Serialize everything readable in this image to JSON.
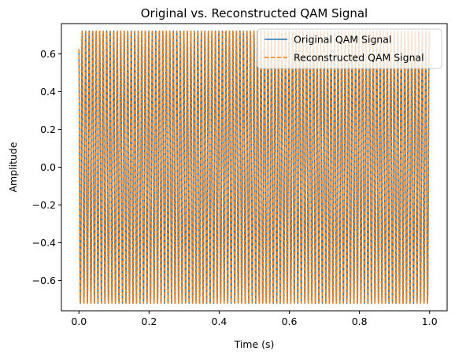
{
  "chart_data": {
    "type": "line",
    "title": "Original vs. Reconstructed QAM Signal",
    "xlabel": "Time (s)",
    "ylabel": "Amplitude",
    "xlim": [
      -0.05,
      1.05
    ],
    "ylim": [
      -0.76,
      0.76
    ],
    "x_ticks": [
      0.0,
      0.2,
      0.4,
      0.6,
      0.8,
      1.0
    ],
    "x_tick_labels": [
      "0.0",
      "0.2",
      "0.4",
      "0.6",
      "0.8",
      "1.0"
    ],
    "y_ticks": [
      -0.6,
      -0.4,
      -0.2,
      0.0,
      0.2,
      0.4,
      0.6
    ],
    "y_tick_labels": [
      "−0.6",
      "−0.4",
      "−0.2",
      "0.0",
      "0.2",
      "0.4",
      "0.6"
    ],
    "grid": false,
    "legend_position": "upper right",
    "signal": {
      "amplitude": 0.7211,
      "phase_rad": 0.5191,
      "frequency_hz": 100,
      "t_start": 0.0,
      "t_end": 1.0
    },
    "series": [
      {
        "name": "Original QAM Signal",
        "color": "#1f77b4",
        "style": "solid"
      },
      {
        "name": "Reconstructed QAM Signal",
        "color": "#ff7f0e",
        "style": "dashed"
      }
    ]
  }
}
